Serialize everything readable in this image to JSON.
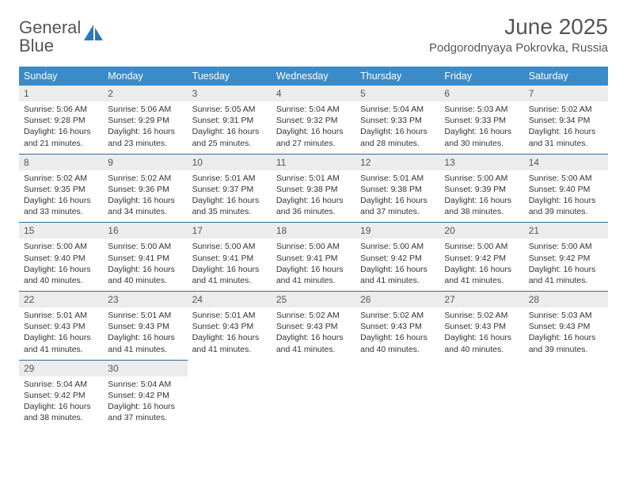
{
  "logo": {
    "word1": "General",
    "word2": "Blue"
  },
  "title": "June 2025",
  "subtitle": "Podgorodnyaya Pokrovka, Russia",
  "colors": {
    "header_bg": "#3b8bc8",
    "header_text": "#ffffff",
    "daynum_bg": "#ececec",
    "row_divider": "#2b6ca3",
    "text_gray": "#555555",
    "logo_blue": "#2b77c0"
  },
  "weekdays": [
    "Sunday",
    "Monday",
    "Tuesday",
    "Wednesday",
    "Thursday",
    "Friday",
    "Saturday"
  ],
  "weeks": [
    [
      {
        "n": "1",
        "sr": "5:06 AM",
        "ss": "9:28 PM",
        "dl": "16 hours and 21 minutes."
      },
      {
        "n": "2",
        "sr": "5:06 AM",
        "ss": "9:29 PM",
        "dl": "16 hours and 23 minutes."
      },
      {
        "n": "3",
        "sr": "5:05 AM",
        "ss": "9:31 PM",
        "dl": "16 hours and 25 minutes."
      },
      {
        "n": "4",
        "sr": "5:04 AM",
        "ss": "9:32 PM",
        "dl": "16 hours and 27 minutes."
      },
      {
        "n": "5",
        "sr": "5:04 AM",
        "ss": "9:33 PM",
        "dl": "16 hours and 28 minutes."
      },
      {
        "n": "6",
        "sr": "5:03 AM",
        "ss": "9:33 PM",
        "dl": "16 hours and 30 minutes."
      },
      {
        "n": "7",
        "sr": "5:02 AM",
        "ss": "9:34 PM",
        "dl": "16 hours and 31 minutes."
      }
    ],
    [
      {
        "n": "8",
        "sr": "5:02 AM",
        "ss": "9:35 PM",
        "dl": "16 hours and 33 minutes."
      },
      {
        "n": "9",
        "sr": "5:02 AM",
        "ss": "9:36 PM",
        "dl": "16 hours and 34 minutes."
      },
      {
        "n": "10",
        "sr": "5:01 AM",
        "ss": "9:37 PM",
        "dl": "16 hours and 35 minutes."
      },
      {
        "n": "11",
        "sr": "5:01 AM",
        "ss": "9:38 PM",
        "dl": "16 hours and 36 minutes."
      },
      {
        "n": "12",
        "sr": "5:01 AM",
        "ss": "9:38 PM",
        "dl": "16 hours and 37 minutes."
      },
      {
        "n": "13",
        "sr": "5:00 AM",
        "ss": "9:39 PM",
        "dl": "16 hours and 38 minutes."
      },
      {
        "n": "14",
        "sr": "5:00 AM",
        "ss": "9:40 PM",
        "dl": "16 hours and 39 minutes."
      }
    ],
    [
      {
        "n": "15",
        "sr": "5:00 AM",
        "ss": "9:40 PM",
        "dl": "16 hours and 40 minutes."
      },
      {
        "n": "16",
        "sr": "5:00 AM",
        "ss": "9:41 PM",
        "dl": "16 hours and 40 minutes."
      },
      {
        "n": "17",
        "sr": "5:00 AM",
        "ss": "9:41 PM",
        "dl": "16 hours and 41 minutes."
      },
      {
        "n": "18",
        "sr": "5:00 AM",
        "ss": "9:41 PM",
        "dl": "16 hours and 41 minutes."
      },
      {
        "n": "19",
        "sr": "5:00 AM",
        "ss": "9:42 PM",
        "dl": "16 hours and 41 minutes."
      },
      {
        "n": "20",
        "sr": "5:00 AM",
        "ss": "9:42 PM",
        "dl": "16 hours and 41 minutes."
      },
      {
        "n": "21",
        "sr": "5:00 AM",
        "ss": "9:42 PM",
        "dl": "16 hours and 41 minutes."
      }
    ],
    [
      {
        "n": "22",
        "sr": "5:01 AM",
        "ss": "9:43 PM",
        "dl": "16 hours and 41 minutes."
      },
      {
        "n": "23",
        "sr": "5:01 AM",
        "ss": "9:43 PM",
        "dl": "16 hours and 41 minutes."
      },
      {
        "n": "24",
        "sr": "5:01 AM",
        "ss": "9:43 PM",
        "dl": "16 hours and 41 minutes."
      },
      {
        "n": "25",
        "sr": "5:02 AM",
        "ss": "9:43 PM",
        "dl": "16 hours and 41 minutes."
      },
      {
        "n": "26",
        "sr": "5:02 AM",
        "ss": "9:43 PM",
        "dl": "16 hours and 40 minutes."
      },
      {
        "n": "27",
        "sr": "5:02 AM",
        "ss": "9:43 PM",
        "dl": "16 hours and 40 minutes."
      },
      {
        "n": "28",
        "sr": "5:03 AM",
        "ss": "9:43 PM",
        "dl": "16 hours and 39 minutes."
      }
    ],
    [
      {
        "n": "29",
        "sr": "5:04 AM",
        "ss": "9:42 PM",
        "dl": "16 hours and 38 minutes."
      },
      {
        "n": "30",
        "sr": "5:04 AM",
        "ss": "9:42 PM",
        "dl": "16 hours and 37 minutes."
      },
      null,
      null,
      null,
      null,
      null
    ]
  ],
  "labels": {
    "sunrise": "Sunrise:",
    "sunset": "Sunset:",
    "daylight": "Daylight:"
  }
}
